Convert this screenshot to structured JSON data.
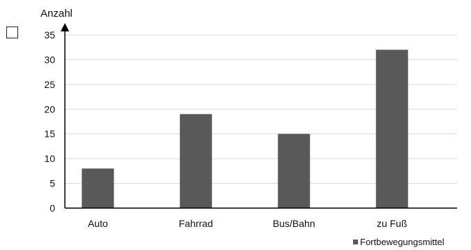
{
  "checkbox": {
    "checked": false
  },
  "chart_data": {
    "type": "bar",
    "ylabel": "Anzahl",
    "xlabel": "",
    "categories": [
      "Auto",
      "Fahrrad",
      "Bus/Bahn",
      "zu Fuß"
    ],
    "series": [
      {
        "name": "Fortbewegungsmittel",
        "values": [
          8,
          19,
          15,
          32
        ]
      }
    ],
    "ylim": [
      0,
      35
    ],
    "yticks": [
      0,
      5,
      10,
      15,
      20,
      25,
      30,
      35
    ],
    "grid": true,
    "legend_position": "bottom-right",
    "colors": {
      "bar": "#595959",
      "grid": "#d9d9d9",
      "axis": "#000000"
    }
  }
}
